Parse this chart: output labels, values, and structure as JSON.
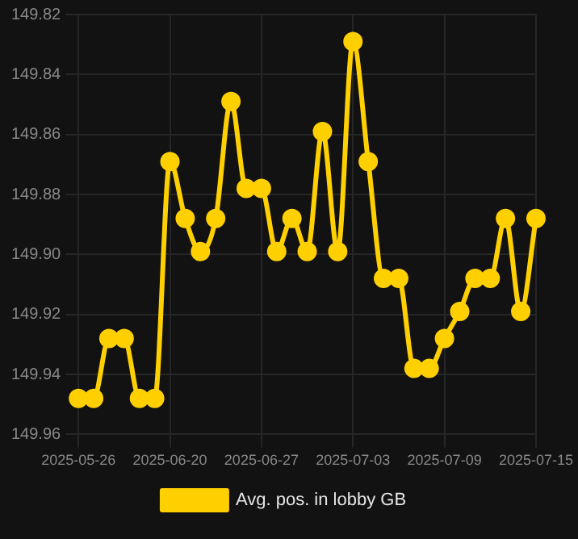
{
  "chart_data": {
    "type": "line",
    "categories": [
      "2025-05-26",
      null,
      null,
      null,
      null,
      null,
      "2025-06-20",
      null,
      null,
      null,
      null,
      null,
      "2025-06-27",
      null,
      null,
      null,
      null,
      null,
      "2025-07-03",
      null,
      null,
      null,
      null,
      null,
      "2025-07-09",
      null,
      null,
      null,
      null,
      null,
      "2025-07-15"
    ],
    "series": [
      {
        "name": "Avg. pos. in lobby GB",
        "color": "#ffd000",
        "values": [
          149.948,
          149.948,
          149.928,
          149.928,
          149.948,
          149.948,
          149.869,
          149.888,
          149.899,
          149.888,
          149.849,
          149.878,
          149.878,
          149.899,
          149.888,
          149.899,
          149.859,
          149.899,
          149.829,
          149.869,
          149.908,
          149.908,
          149.938,
          149.938,
          149.928,
          149.919,
          149.908,
          149.908,
          149.888,
          149.919,
          149.888
        ]
      }
    ],
    "ylim": [
      149.96,
      149.82
    ],
    "yticks": [
      {
        "value": 149.82,
        "label": "149.82"
      },
      {
        "value": 149.84,
        "label": "149.84"
      },
      {
        "value": 149.86,
        "label": "149.86"
      },
      {
        "value": 149.88,
        "label": "149.88"
      },
      {
        "value": 149.9,
        "label": "149.90"
      },
      {
        "value": 149.92,
        "label": "149.92"
      },
      {
        "value": 149.94,
        "label": "149.94"
      },
      {
        "value": 149.96,
        "label": "149.96"
      }
    ],
    "grid": true,
    "legend": "bottom",
    "marker": "circle",
    "line_style": "solid"
  }
}
